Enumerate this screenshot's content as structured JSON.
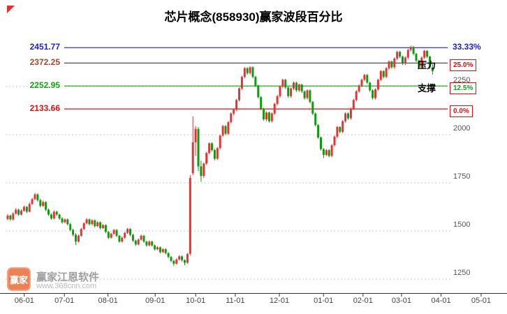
{
  "title": "芯片概念(858930)赢家波段百分比",
  "annotations": {
    "resistance": "压力",
    "support": "支撑"
  },
  "watermark": {
    "logo_text": "赢家",
    "brand": "赢家江恩软件",
    "url": "www.368cnn.com"
  },
  "colors": {
    "up": "#e83232",
    "down": "#0f9a10",
    "axis": "#333333",
    "grid": "#c9c9c9",
    "ytick_text": "#555555",
    "xtick_text": "#444444",
    "box_border": "#e01010"
  },
  "chart_data": {
    "type": "candlestick",
    "title": "芯片概念(858930)赢家波段百分比",
    "ylim": [
      1250,
      2500
    ],
    "yticks": [
      2250,
      2000,
      1750,
      1500,
      1250
    ],
    "xticks": [
      "06-01",
      "07-01",
      "08-01",
      "09-01",
      "10-01",
      "11-01",
      "12-01",
      "01-01",
      "02-01",
      "03-01",
      "04-01",
      "05-01"
    ],
    "xtick_pos": [
      0.048,
      0.127,
      0.213,
      0.306,
      0.386,
      0.464,
      0.551,
      0.638,
      0.716,
      0.792,
      0.87,
      0.949
    ],
    "grid": true,
    "legend": false,
    "levels": [
      {
        "value": 2451.77,
        "price_label": "2451.77",
        "pct_label": "33.33%",
        "line_color": "#2020dd",
        "price_color": "#2020dd",
        "pct_color": "#2020dd",
        "boxed": false,
        "role": ""
      },
      {
        "value": 2372.25,
        "price_label": "2372.25",
        "pct_label": "25.0%",
        "line_color": "#3a3a3a",
        "price_color": "#9b4a2a",
        "pct_color": "#e01010",
        "boxed": true,
        "role": "resistance"
      },
      {
        "value": 2252.95,
        "price_label": "2252.95",
        "pct_label": "12.5%",
        "line_color": "#17a017",
        "price_color": "#17a017",
        "pct_color": "#17a017",
        "boxed": true,
        "role": "support"
      },
      {
        "value": 2133.66,
        "price_label": "2133.66",
        "pct_label": "0.0%",
        "line_color": "#e01010",
        "price_color": "#e01010",
        "pct_color": "#e01010",
        "boxed": true,
        "role": ""
      }
    ],
    "candles": [
      [
        1562,
        1588,
        1555,
        1580
      ],
      [
        1580,
        1586,
        1552,
        1560
      ],
      [
        1560,
        1598,
        1554,
        1590
      ],
      [
        1590,
        1618,
        1585,
        1610
      ],
      [
        1610,
        1616,
        1578,
        1585
      ],
      [
        1585,
        1612,
        1580,
        1605
      ],
      [
        1605,
        1632,
        1600,
        1625
      ],
      [
        1625,
        1630,
        1592,
        1600
      ],
      [
        1600,
        1648,
        1596,
        1640
      ],
      [
        1640,
        1672,
        1635,
        1665
      ],
      [
        1665,
        1698,
        1660,
        1690
      ],
      [
        1690,
        1696,
        1652,
        1660
      ],
      [
        1660,
        1668,
        1622,
        1630
      ],
      [
        1630,
        1658,
        1624,
        1650
      ],
      [
        1650,
        1655,
        1602,
        1610
      ],
      [
        1610,
        1616,
        1578,
        1585
      ],
      [
        1585,
        1592,
        1558,
        1565
      ],
      [
        1565,
        1606,
        1560,
        1600
      ],
      [
        1600,
        1605,
        1578,
        1585
      ],
      [
        1585,
        1590,
        1558,
        1565
      ],
      [
        1565,
        1572,
        1538,
        1545
      ],
      [
        1545,
        1566,
        1540,
        1560
      ],
      [
        1560,
        1565,
        1528,
        1535
      ],
      [
        1535,
        1542,
        1498,
        1505
      ],
      [
        1505,
        1512,
        1472,
        1480
      ],
      [
        1480,
        1488,
        1428,
        1445
      ],
      [
        1445,
        1482,
        1440,
        1475
      ],
      [
        1475,
        1516,
        1470,
        1510
      ],
      [
        1510,
        1546,
        1505,
        1540
      ],
      [
        1540,
        1566,
        1534,
        1560
      ],
      [
        1560,
        1565,
        1528,
        1535
      ],
      [
        1535,
        1561,
        1530,
        1555
      ],
      [
        1555,
        1560,
        1518,
        1525
      ],
      [
        1525,
        1551,
        1520,
        1545
      ],
      [
        1545,
        1550,
        1508,
        1515
      ],
      [
        1515,
        1536,
        1510,
        1530
      ],
      [
        1530,
        1535,
        1488,
        1495
      ],
      [
        1495,
        1500,
        1458,
        1465
      ],
      [
        1465,
        1491,
        1460,
        1485
      ],
      [
        1485,
        1511,
        1480,
        1505
      ],
      [
        1505,
        1510,
        1468,
        1475
      ],
      [
        1475,
        1480,
        1438,
        1445
      ],
      [
        1445,
        1471,
        1440,
        1465
      ],
      [
        1465,
        1496,
        1460,
        1490
      ],
      [
        1490,
        1516,
        1485,
        1510
      ],
      [
        1510,
        1515,
        1473,
        1480
      ],
      [
        1480,
        1485,
        1443,
        1450
      ],
      [
        1450,
        1455,
        1422,
        1430
      ],
      [
        1430,
        1461,
        1425,
        1455
      ],
      [
        1455,
        1481,
        1450,
        1475
      ],
      [
        1475,
        1480,
        1438,
        1445
      ],
      [
        1445,
        1450,
        1418,
        1425
      ],
      [
        1425,
        1451,
        1420,
        1445
      ],
      [
        1445,
        1450,
        1418,
        1425
      ],
      [
        1425,
        1430,
        1398,
        1405
      ],
      [
        1405,
        1421,
        1400,
        1415
      ],
      [
        1415,
        1420,
        1383,
        1390
      ],
      [
        1390,
        1411,
        1385,
        1405
      ],
      [
        1405,
        1410,
        1378,
        1385
      ],
      [
        1385,
        1390,
        1358,
        1365
      ],
      [
        1365,
        1370,
        1338,
        1345
      ],
      [
        1345,
        1350,
        1318,
        1330
      ],
      [
        1330,
        1358,
        1325,
        1352
      ],
      [
        1352,
        1374,
        1347,
        1368
      ],
      [
        1368,
        1373,
        1341,
        1348
      ],
      [
        1348,
        1353,
        1322,
        1335
      ],
      [
        1335,
        1386,
        1330,
        1380
      ],
      [
        1382,
        1790,
        1372,
        1775
      ],
      [
        1800,
        2095,
        1790,
        1960
      ],
      [
        1960,
        2045,
        1890,
        2030
      ],
      [
        2030,
        2040,
        1810,
        1835
      ],
      [
        1835,
        1865,
        1755,
        1785
      ],
      [
        1785,
        1856,
        1775,
        1850
      ],
      [
        1850,
        1911,
        1843,
        1905
      ],
      [
        1905,
        1961,
        1898,
        1955
      ],
      [
        1955,
        1960,
        1912,
        1920
      ],
      [
        1920,
        1926,
        1866,
        1875
      ],
      [
        1875,
        1936,
        1868,
        1930
      ],
      [
        1930,
        2001,
        1922,
        1995
      ],
      [
        1995,
        2051,
        1988,
        2045
      ],
      [
        2045,
        2050,
        1997,
        2005
      ],
      [
        2005,
        2071,
        1998,
        2065
      ],
      [
        2065,
        2116,
        2058,
        2110
      ],
      [
        2110,
        2136,
        2100,
        2130
      ],
      [
        2130,
        2186,
        2122,
        2180
      ],
      [
        2180,
        2246,
        2172,
        2240
      ],
      [
        2240,
        2306,
        2232,
        2300
      ],
      [
        2300,
        2351,
        2292,
        2345
      ],
      [
        2345,
        2350,
        2312,
        2320
      ],
      [
        2320,
        2356,
        2312,
        2350
      ],
      [
        2350,
        2355,
        2292,
        2300
      ],
      [
        2300,
        2305,
        2247,
        2255
      ],
      [
        2255,
        2260,
        2187,
        2195
      ],
      [
        2195,
        2200,
        2127,
        2135
      ],
      [
        2135,
        2140,
        2072,
        2080
      ],
      [
        2080,
        2121,
        2070,
        2115
      ],
      [
        2115,
        2120,
        2062,
        2070
      ],
      [
        2070,
        2116,
        2062,
        2110
      ],
      [
        2110,
        2166,
        2102,
        2160
      ],
      [
        2160,
        2206,
        2152,
        2200
      ],
      [
        2200,
        2256,
        2192,
        2250
      ],
      [
        2250,
        2291,
        2242,
        2285
      ],
      [
        2285,
        2290,
        2237,
        2245
      ],
      [
        2245,
        2250,
        2192,
        2200
      ],
      [
        2200,
        2246,
        2192,
        2240
      ],
      [
        2240,
        2276,
        2232,
        2270
      ],
      [
        2270,
        2275,
        2222,
        2230
      ],
      [
        2230,
        2266,
        2222,
        2260
      ],
      [
        2260,
        2265,
        2217,
        2225
      ],
      [
        2225,
        2230,
        2182,
        2190
      ],
      [
        2190,
        2236,
        2182,
        2230
      ],
      [
        2230,
        2235,
        2162,
        2170
      ],
      [
        2170,
        2175,
        2102,
        2110
      ],
      [
        2110,
        2115,
        2042,
        2050
      ],
      [
        2050,
        2055,
        1977,
        1985
      ],
      [
        1985,
        1990,
        1917,
        1925
      ],
      [
        1925,
        1930,
        1878,
        1895
      ],
      [
        1895,
        1926,
        1888,
        1920
      ],
      [
        1920,
        1925,
        1882,
        1890
      ],
      [
        1890,
        1951,
        1883,
        1945
      ],
      [
        1945,
        1996,
        1938,
        1990
      ],
      [
        1990,
        2046,
        1982,
        2040
      ],
      [
        2040,
        2045,
        2007,
        2015
      ],
      [
        2015,
        2076,
        2008,
        2070
      ],
      [
        2070,
        2116,
        2062,
        2110
      ],
      [
        2110,
        2115,
        2077,
        2085
      ],
      [
        2085,
        2141,
        2078,
        2135
      ],
      [
        2135,
        2186,
        2128,
        2180
      ],
      [
        2180,
        2231,
        2172,
        2225
      ],
      [
        2225,
        2261,
        2217,
        2255
      ],
      [
        2255,
        2291,
        2247,
        2285
      ],
      [
        2285,
        2316,
        2277,
        2310
      ],
      [
        2310,
        2315,
        2262,
        2270
      ],
      [
        2270,
        2275,
        2222,
        2230
      ],
      [
        2230,
        2235,
        2182,
        2190
      ],
      [
        2190,
        2241,
        2182,
        2235
      ],
      [
        2235,
        2291,
        2227,
        2285
      ],
      [
        2285,
        2336,
        2277,
        2330
      ],
      [
        2330,
        2335,
        2292,
        2300
      ],
      [
        2300,
        2351,
        2292,
        2345
      ],
      [
        2345,
        2386,
        2337,
        2380
      ],
      [
        2380,
        2385,
        2342,
        2350
      ],
      [
        2350,
        2401,
        2342,
        2395
      ],
      [
        2395,
        2436,
        2387,
        2430
      ],
      [
        2430,
        2435,
        2397,
        2405
      ],
      [
        2405,
        2410,
        2362,
        2370
      ],
      [
        2370,
        2406,
        2362,
        2400
      ],
      [
        2400,
        2446,
        2392,
        2440
      ],
      [
        2440,
        2462,
        2432,
        2455
      ],
      [
        2455,
        2460,
        2412,
        2420
      ],
      [
        2420,
        2425,
        2377,
        2385
      ],
      [
        2385,
        2390,
        2342,
        2350
      ],
      [
        2350,
        2406,
        2342,
        2400
      ],
      [
        2400,
        2441,
        2392,
        2435
      ],
      [
        2435,
        2440,
        2397,
        2405
      ],
      [
        2405,
        2410,
        2342,
        2350
      ],
      [
        2350,
        2366,
        2312,
        2330
      ]
    ]
  }
}
